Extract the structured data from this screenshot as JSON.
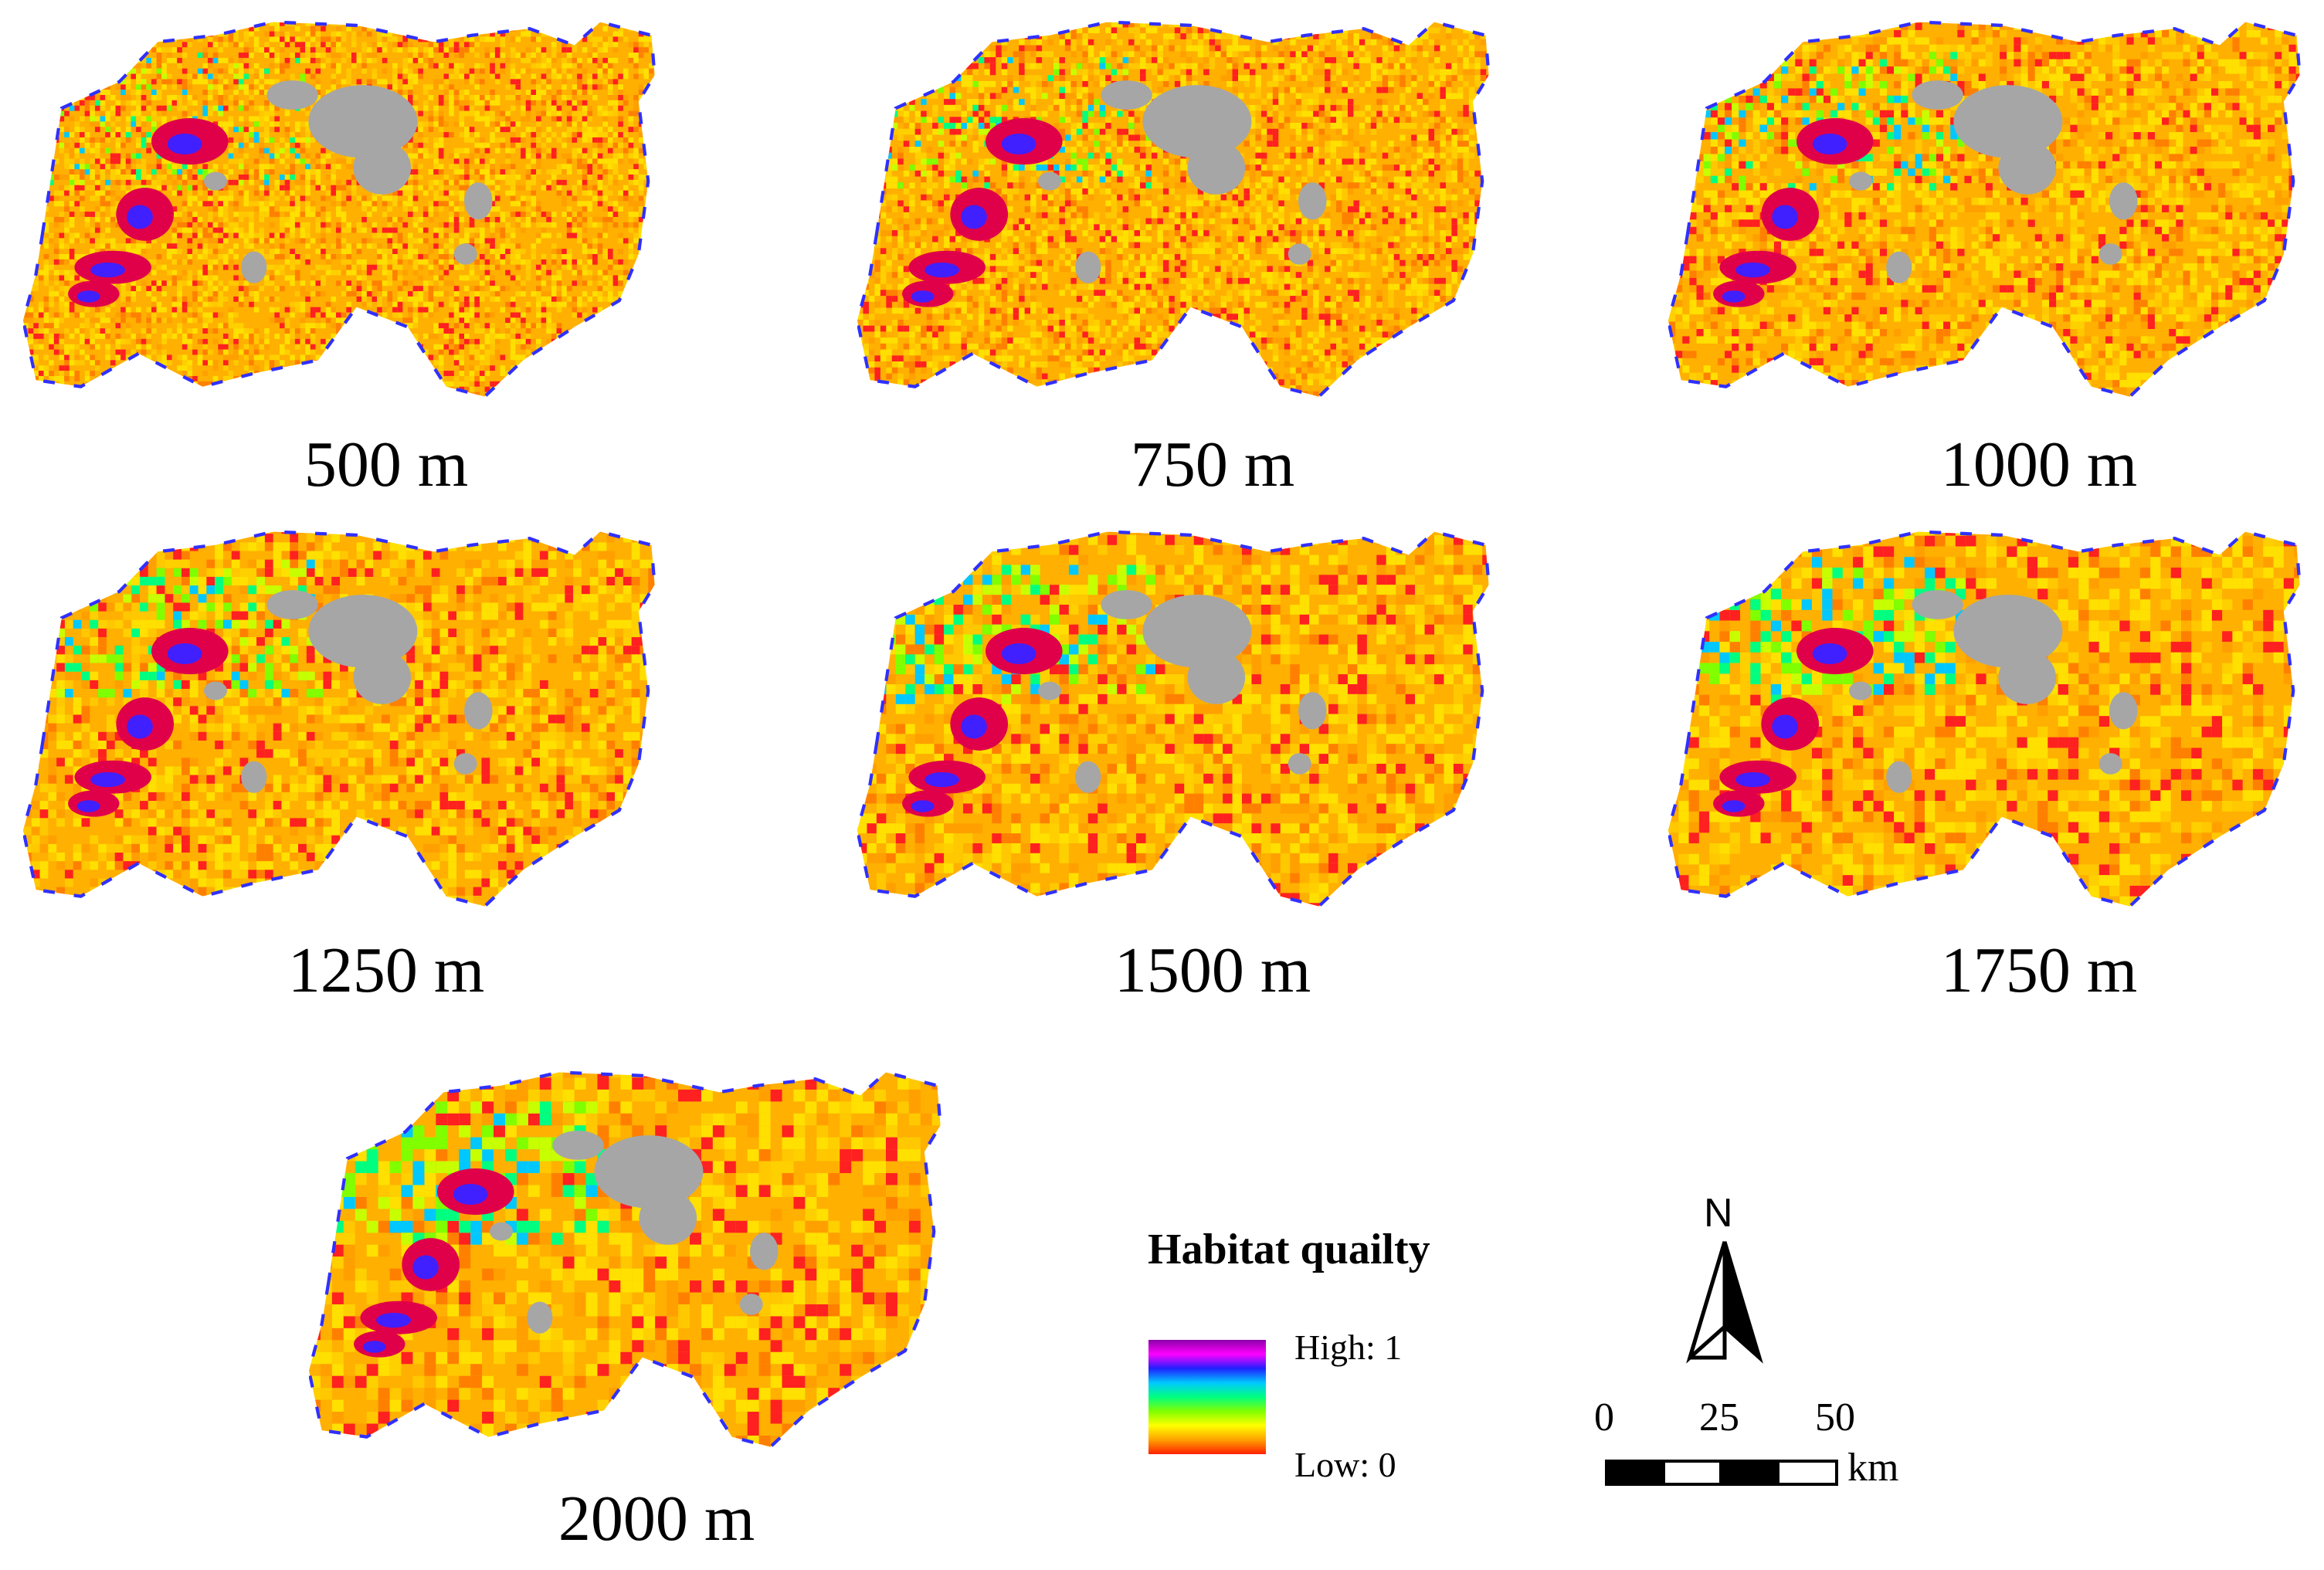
{
  "panels": [
    {
      "caption": "500 m"
    },
    {
      "caption": "750 m"
    },
    {
      "caption": "1000 m"
    },
    {
      "caption": "1250 m"
    },
    {
      "caption": "1500 m"
    },
    {
      "caption": "1750 m"
    },
    {
      "caption": "2000 m"
    }
  ],
  "legend": {
    "title": "Habitat quailty",
    "high_label": "High: 1",
    "low_label": "Low: 0",
    "ramp_colors": [
      "#8a00a8",
      "#ff00ff",
      "#2020ff",
      "#00c8ff",
      "#00ff80",
      "#80ff00",
      "#ffff00",
      "#ffa000",
      "#ff2000"
    ],
    "nodata_color": "#a6a6a6"
  },
  "north_arrow": {
    "label": "N"
  },
  "scale_bar": {
    "ticks": [
      "0",
      "25",
      "50"
    ],
    "unit": "km"
  },
  "colors": {
    "background": "#ffffff",
    "dominant_orange": "#ffb000",
    "yellow": "#ffe000",
    "red": "#ff2020",
    "urban_gray": "#a6a6a6"
  }
}
